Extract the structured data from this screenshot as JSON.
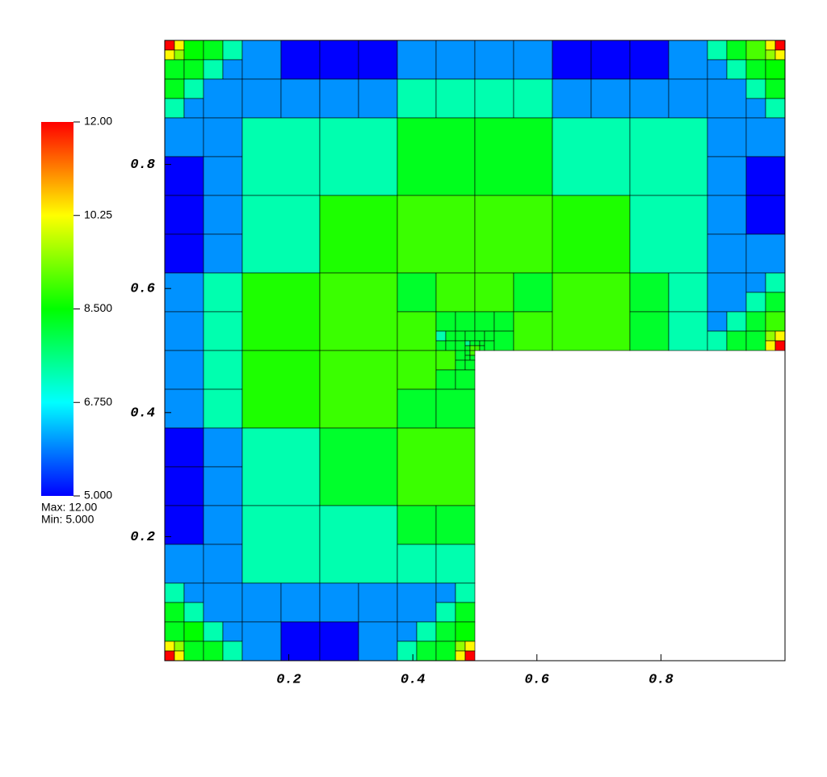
{
  "chart_data": {
    "type": "mesh",
    "xlim": [
      0,
      1
    ],
    "ylim": [
      0,
      1
    ],
    "xticks": [
      0.2,
      0.4,
      0.6,
      0.8
    ],
    "yticks": [
      0.2,
      0.4,
      0.6,
      0.8
    ],
    "colorbar": {
      "ticks": [
        {
          "value": 5,
          "label": "5.000"
        },
        {
          "value": 6.75,
          "label": "6.750"
        },
        {
          "value": 8.5,
          "label": "8.500"
        },
        {
          "value": 10.25,
          "label": "10.25"
        },
        {
          "value": 12,
          "label": "12.00"
        }
      ],
      "colors": [
        "#0000ff",
        "#00ffff",
        "#00ff00",
        "#ffff00",
        "#ff0000"
      ]
    },
    "stats": [
      "Max:  12.00",
      "Min:  5.000"
    ],
    "cells": [
      [
        0,
        0.984375,
        0.015625,
        12
      ],
      [
        0.015625,
        0.984375,
        0.015625,
        10.3
      ],
      [
        0,
        0.96875,
        0.015625,
        10.3
      ],
      [
        0.015625,
        0.96875,
        0.015625,
        9.5
      ],
      [
        0.03125,
        0.96875,
        0.03125,
        8.5
      ],
      [
        0,
        0.9375,
        0.03125,
        8.3
      ],
      [
        0.03125,
        0.9375,
        0.03125,
        8.3
      ],
      [
        0.0625,
        0.96875,
        0.03125,
        8.3
      ],
      [
        0.09375,
        0.96875,
        0.03125,
        7.3
      ],
      [
        0.0625,
        0.9375,
        0.03125,
        7.3
      ],
      [
        0.09375,
        0.9375,
        0.03125,
        6
      ],
      [
        0.125,
        0.9375,
        0.0625,
        6
      ],
      [
        0.1875,
        0.9375,
        0.0625,
        5
      ],
      [
        0.25,
        0.9375,
        0.0625,
        5
      ],
      [
        0.3125,
        0.9375,
        0.0625,
        5
      ],
      [
        0.375,
        0.9375,
        0.0625,
        6
      ],
      [
        0.4375,
        0.9375,
        0.0625,
        6
      ],
      [
        0.5,
        0.9375,
        0.0625,
        6
      ],
      [
        0.5625,
        0.9375,
        0.0625,
        6
      ],
      [
        0.625,
        0.9375,
        0.0625,
        5
      ],
      [
        0.6875,
        0.9375,
        0.0625,
        5
      ],
      [
        0.75,
        0.9375,
        0.0625,
        5
      ],
      [
        0.8125,
        0.9375,
        0.0625,
        6
      ],
      [
        0.875,
        0.96875,
        0.03125,
        7.3
      ],
      [
        0.90625,
        0.96875,
        0.03125,
        8.3
      ],
      [
        0.875,
        0.9375,
        0.03125,
        6
      ],
      [
        0.90625,
        0.9375,
        0.03125,
        7.3
      ],
      [
        0.9375,
        0.96875,
        0.03125,
        9
      ],
      [
        0.96875,
        0.984375,
        0.015625,
        10.3
      ],
      [
        0.984375,
        0.984375,
        0.015625,
        12
      ],
      [
        0.96875,
        0.96875,
        0.015625,
        9.5
      ],
      [
        0.984375,
        0.96875,
        0.015625,
        10.3
      ],
      [
        0.9375,
        0.9375,
        0.03125,
        8.3
      ],
      [
        0.96875,
        0.9375,
        0.03125,
        8.5
      ],
      [
        0,
        0.90625,
        0.03125,
        8.3
      ],
      [
        0.03125,
        0.90625,
        0.03125,
        7.3
      ],
      [
        0,
        0.875,
        0.03125,
        7.3
      ],
      [
        0.03125,
        0.875,
        0.03125,
        6
      ],
      [
        0.0625,
        0.875,
        0.0625,
        6
      ],
      [
        0.125,
        0.875,
        0.0625,
        6
      ],
      [
        0.1875,
        0.875,
        0.0625,
        6
      ],
      [
        0.25,
        0.875,
        0.0625,
        6
      ],
      [
        0.3125,
        0.875,
        0.0625,
        6
      ],
      [
        0.375,
        0.875,
        0.0625,
        7.3
      ],
      [
        0.4375,
        0.875,
        0.0625,
        7.3
      ],
      [
        0.5,
        0.875,
        0.0625,
        7.3
      ],
      [
        0.5625,
        0.875,
        0.0625,
        7.3
      ],
      [
        0.625,
        0.875,
        0.0625,
        6
      ],
      [
        0.6875,
        0.875,
        0.0625,
        6
      ],
      [
        0.75,
        0.875,
        0.0625,
        6
      ],
      [
        0.8125,
        0.875,
        0.0625,
        6
      ],
      [
        0.875,
        0.875,
        0.0625,
        6
      ],
      [
        0.9375,
        0.90625,
        0.03125,
        7.3
      ],
      [
        0.96875,
        0.90625,
        0.03125,
        8.3
      ],
      [
        0.9375,
        0.875,
        0.03125,
        6
      ],
      [
        0.96875,
        0.875,
        0.03125,
        7.3
      ],
      [
        0,
        0.8125,
        0.0625,
        6
      ],
      [
        0,
        0.75,
        0.0625,
        5
      ],
      [
        0.0625,
        0.8125,
        0.0625,
        6
      ],
      [
        0.0625,
        0.75,
        0.0625,
        6
      ],
      [
        0.125,
        0.75,
        0.125,
        7.3
      ],
      [
        0.25,
        0.75,
        0.125,
        7.3
      ],
      [
        0.375,
        0.75,
        0.125,
        8.3
      ],
      [
        0.5,
        0.75,
        0.125,
        8.3
      ],
      [
        0.625,
        0.75,
        0.125,
        7.3
      ],
      [
        0.75,
        0.75,
        0.125,
        7.3
      ],
      [
        0.875,
        0.8125,
        0.0625,
        6
      ],
      [
        0.875,
        0.75,
        0.0625,
        6
      ],
      [
        0.9375,
        0.8125,
        0.0625,
        6
      ],
      [
        0.9375,
        0.75,
        0.0625,
        5
      ],
      [
        0,
        0.6875,
        0.0625,
        5
      ],
      [
        0,
        0.625,
        0.0625,
        5
      ],
      [
        0.0625,
        0.6875,
        0.0625,
        6
      ],
      [
        0.0625,
        0.625,
        0.0625,
        6
      ],
      [
        0.125,
        0.625,
        0.125,
        7.3
      ],
      [
        0.25,
        0.625,
        0.125,
        8.7
      ],
      [
        0.375,
        0.625,
        0.125,
        8.9
      ],
      [
        0.5,
        0.625,
        0.125,
        8.9
      ],
      [
        0.625,
        0.625,
        0.125,
        8.7
      ],
      [
        0.75,
        0.625,
        0.125,
        7.3
      ],
      [
        0.875,
        0.6875,
        0.0625,
        6
      ],
      [
        0.875,
        0.625,
        0.0625,
        6
      ],
      [
        0.9375,
        0.6875,
        0.0625,
        5
      ],
      [
        0.9375,
        0.625,
        0.0625,
        6
      ],
      [
        0,
        0.5625,
        0.0625,
        6
      ],
      [
        0,
        0.5,
        0.0625,
        6
      ],
      [
        0.0625,
        0.5625,
        0.0625,
        7.3
      ],
      [
        0.0625,
        0.5,
        0.0625,
        7.3
      ],
      [
        0.125,
        0.5,
        0.125,
        8.7
      ],
      [
        0.25,
        0.5,
        0.125,
        8.9
      ],
      [
        0.375,
        0.5625,
        0.0625,
        8.2
      ],
      [
        0.375,
        0.5,
        0.0625,
        8.9
      ],
      [
        0.4375,
        0.5625,
        0.0625,
        8.9
      ],
      [
        0.4375,
        0.53125,
        0.03125,
        8.2
      ],
      [
        0.46875,
        0.53125,
        0.03125,
        8.2
      ],
      [
        0.4375,
        0.515625,
        0.015625,
        7.3
      ],
      [
        0.453125,
        0.515625,
        0.015625,
        8.2
      ],
      [
        0.4375,
        0.5,
        0.015625,
        8.2
      ],
      [
        0.453125,
        0.5,
        0.015625,
        8.2
      ],
      [
        0.46875,
        0.515625,
        0.015625,
        8.2
      ],
      [
        0.484375,
        0.515625,
        0.015625,
        8.2
      ],
      [
        0.46875,
        0.5,
        0.015625,
        8.2
      ],
      [
        0.484375,
        0.5078125,
        0.0078125,
        7.5
      ],
      [
        0.4921875,
        0.5078125,
        0.0078125,
        8.2
      ],
      [
        0.484375,
        0.5,
        0.0078125,
        8.2
      ],
      [
        0.4921875,
        0.5,
        0.0078125,
        9
      ],
      [
        0.5,
        0.5625,
        0.0625,
        8.9
      ],
      [
        0.5,
        0.53125,
        0.03125,
        8.2
      ],
      [
        0.53125,
        0.53125,
        0.03125,
        8.2
      ],
      [
        0.5,
        0.515625,
        0.015625,
        8.2
      ],
      [
        0.515625,
        0.515625,
        0.015625,
        8.2
      ],
      [
        0.5,
        0.5078125,
        0.0078125,
        8.2
      ],
      [
        0.5078125,
        0.5078125,
        0.0078125,
        8.2
      ],
      [
        0.5,
        0.5,
        0.0078125,
        8.9
      ],
      [
        0.5078125,
        0.5,
        0.0078125,
        8.2
      ],
      [
        0.515625,
        0.5,
        0.015625,
        8.2
      ],
      [
        0.53125,
        0.5,
        0.03125,
        8.2
      ],
      [
        0.5625,
        0.5625,
        0.0625,
        8.2
      ],
      [
        0.5625,
        0.5,
        0.0625,
        8.9
      ],
      [
        0.625,
        0.5,
        0.125,
        8.9
      ],
      [
        0.75,
        0.5625,
        0.0625,
        8.2
      ],
      [
        0.75,
        0.5,
        0.0625,
        8.2
      ],
      [
        0.8125,
        0.5625,
        0.0625,
        7.3
      ],
      [
        0.8125,
        0.5,
        0.0625,
        7.3
      ],
      [
        0.875,
        0.5625,
        0.0625,
        6
      ],
      [
        0.875,
        0.53125,
        0.03125,
        6
      ],
      [
        0.90625,
        0.53125,
        0.03125,
        7.3
      ],
      [
        0.875,
        0.5,
        0.03125,
        7.3
      ],
      [
        0.90625,
        0.5,
        0.03125,
        8.2
      ],
      [
        0.9375,
        0.59375,
        0.03125,
        6
      ],
      [
        0.96875,
        0.59375,
        0.03125,
        7.3
      ],
      [
        0.9375,
        0.5625,
        0.03125,
        7.3
      ],
      [
        0.96875,
        0.5625,
        0.03125,
        8.2
      ],
      [
        0.9375,
        0.53125,
        0.03125,
        8.2
      ],
      [
        0.96875,
        0.53125,
        0.03125,
        8.9
      ],
      [
        0.9375,
        0.5,
        0.03125,
        8.2
      ],
      [
        0.96875,
        0.515625,
        0.015625,
        9.5
      ],
      [
        0.984375,
        0.515625,
        0.015625,
        10.3
      ],
      [
        0.96875,
        0.5,
        0.015625,
        10.3
      ],
      [
        0.984375,
        0.5,
        0.015625,
        12
      ],
      [
        0,
        0.4375,
        0.0625,
        6
      ],
      [
        0,
        0.375,
        0.0625,
        6
      ],
      [
        0.0625,
        0.4375,
        0.0625,
        7.3
      ],
      [
        0.0625,
        0.375,
        0.0625,
        7.3
      ],
      [
        0.125,
        0.375,
        0.125,
        8.7
      ],
      [
        0.25,
        0.375,
        0.125,
        8.9
      ],
      [
        0.375,
        0.4375,
        0.0625,
        8.9
      ],
      [
        0.375,
        0.375,
        0.0625,
        8.2
      ],
      [
        0.4375,
        0.46875,
        0.03125,
        8.9
      ],
      [
        0.46875,
        0.484375,
        0.015625,
        8.2
      ],
      [
        0.484375,
        0.4921875,
        0.0078125,
        8.2
      ],
      [
        0.4921875,
        0.4921875,
        0.0078125,
        9
      ],
      [
        0.484375,
        0.484375,
        0.0078125,
        8.2
      ],
      [
        0.4921875,
        0.484375,
        0.0078125,
        8.2
      ],
      [
        0.46875,
        0.46875,
        0.015625,
        8.2
      ],
      [
        0.484375,
        0.46875,
        0.015625,
        8.2
      ],
      [
        0.4375,
        0.4375,
        0.03125,
        8.2
      ],
      [
        0.46875,
        0.4375,
        0.03125,
        8.2
      ],
      [
        0.4375,
        0.375,
        0.0625,
        8.2
      ],
      [
        0,
        0.3125,
        0.0625,
        5
      ],
      [
        0,
        0.25,
        0.0625,
        5
      ],
      [
        0.0625,
        0.3125,
        0.0625,
        6
      ],
      [
        0.0625,
        0.25,
        0.0625,
        6
      ],
      [
        0.125,
        0.25,
        0.125,
        7.3
      ],
      [
        0.25,
        0.25,
        0.125,
        8.2
      ],
      [
        0.375,
        0.25,
        0.125,
        8.9
      ],
      [
        0,
        0.1875,
        0.0625,
        5
      ],
      [
        0,
        0.125,
        0.0625,
        6
      ],
      [
        0.0625,
        0.1875,
        0.0625,
        6
      ],
      [
        0.0625,
        0.125,
        0.0625,
        6
      ],
      [
        0.125,
        0.125,
        0.125,
        7.3
      ],
      [
        0.25,
        0.125,
        0.125,
        7.3
      ],
      [
        0.375,
        0.1875,
        0.0625,
        8.2
      ],
      [
        0.375,
        0.125,
        0.0625,
        7.3
      ],
      [
        0.4375,
        0.1875,
        0.0625,
        8.2
      ],
      [
        0.4375,
        0.125,
        0.0625,
        7.3
      ],
      [
        0,
        0.09375,
        0.03125,
        7.3
      ],
      [
        0.03125,
        0.09375,
        0.03125,
        6
      ],
      [
        0,
        0.0625,
        0.03125,
        8.3
      ],
      [
        0.03125,
        0.0625,
        0.03125,
        7.3
      ],
      [
        0.0625,
        0.0625,
        0.0625,
        6
      ],
      [
        0.125,
        0.0625,
        0.0625,
        6
      ],
      [
        0.1875,
        0.0625,
        0.0625,
        6
      ],
      [
        0.25,
        0.0625,
        0.0625,
        6
      ],
      [
        0.3125,
        0.0625,
        0.0625,
        6
      ],
      [
        0.375,
        0.0625,
        0.0625,
        6
      ],
      [
        0.4375,
        0.09375,
        0.03125,
        6
      ],
      [
        0.46875,
        0.09375,
        0.03125,
        7.3
      ],
      [
        0.4375,
        0.0625,
        0.03125,
        7.3
      ],
      [
        0.46875,
        0.0625,
        0.03125,
        8.3
      ],
      [
        0,
        0.03125,
        0.03125,
        8.3
      ],
      [
        0.03125,
        0.03125,
        0.03125,
        8.5
      ],
      [
        0,
        0.015625,
        0.015625,
        10.3
      ],
      [
        0.015625,
        0.015625,
        0.015625,
        9.5
      ],
      [
        0,
        0,
        0.015625,
        12
      ],
      [
        0.015625,
        0,
        0.015625,
        10.3
      ],
      [
        0.03125,
        0,
        0.03125,
        8.3
      ],
      [
        0.0625,
        0.03125,
        0.03125,
        7.3
      ],
      [
        0.09375,
        0.03125,
        0.03125,
        6
      ],
      [
        0.0625,
        0,
        0.03125,
        8.3
      ],
      [
        0.09375,
        0,
        0.03125,
        7.3
      ],
      [
        0.125,
        0,
        0.0625,
        6
      ],
      [
        0.1875,
        0,
        0.0625,
        5
      ],
      [
        0.25,
        0,
        0.0625,
        5
      ],
      [
        0.3125,
        0,
        0.0625,
        6
      ],
      [
        0.375,
        0.03125,
        0.03125,
        6
      ],
      [
        0.40625,
        0.03125,
        0.03125,
        7.3
      ],
      [
        0.375,
        0,
        0.03125,
        7.3
      ],
      [
        0.40625,
        0,
        0.03125,
        8.2
      ],
      [
        0.4375,
        0.03125,
        0.03125,
        8.2
      ],
      [
        0.46875,
        0.03125,
        0.03125,
        8.5
      ],
      [
        0.4375,
        0,
        0.03125,
        8.3
      ],
      [
        0.46875,
        0.015625,
        0.015625,
        9.5
      ],
      [
        0.484375,
        0.015625,
        0.015625,
        10.3
      ],
      [
        0.46875,
        0,
        0.015625,
        10.3
      ],
      [
        0.484375,
        0,
        0.015625,
        12
      ]
    ]
  }
}
